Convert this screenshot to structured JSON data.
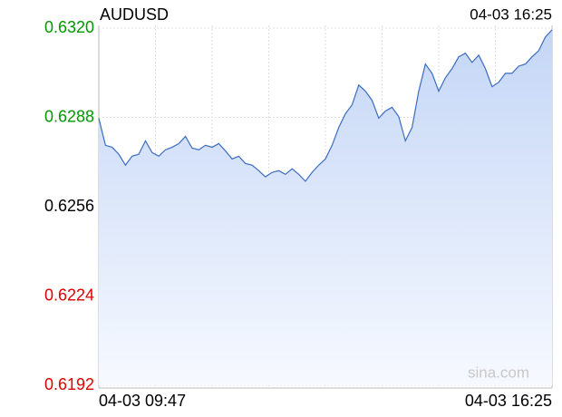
{
  "chart_data": {
    "type": "area",
    "title": "AUDUSD",
    "subtitle": "04-03 16:25",
    "watermark": "sina.com",
    "categories": [
      "04-03 09:47",
      null,
      null,
      null,
      null,
      null,
      null,
      null,
      null,
      null,
      null,
      null,
      null,
      null,
      null,
      null,
      null,
      null,
      null,
      null,
      null,
      null,
      null,
      null,
      null,
      null,
      null,
      null,
      null,
      null,
      null,
      null,
      null,
      null,
      null,
      null,
      null,
      null,
      null,
      null,
      null,
      null,
      null,
      null,
      null,
      null,
      null,
      null,
      null,
      null,
      null,
      null,
      null,
      null,
      null,
      null,
      null,
      null,
      null,
      null,
      null,
      null,
      null,
      null,
      null,
      null,
      null,
      null,
      "04-03 16:25"
    ],
    "values": [
      0.62877,
      0.6278,
      0.62773,
      0.62748,
      0.62709,
      0.62741,
      0.62748,
      0.62796,
      0.62754,
      0.62741,
      0.62764,
      0.62773,
      0.62786,
      0.62812,
      0.6277,
      0.62764,
      0.6278,
      0.62773,
      0.62786,
      0.6276,
      0.62731,
      0.62741,
      0.62715,
      0.62709,
      0.62689,
      0.62667,
      0.62683,
      0.62689,
      0.62676,
      0.62696,
      0.62676,
      0.62651,
      0.62683,
      0.62709,
      0.62731,
      0.6278,
      0.62844,
      0.62893,
      0.62925,
      0.62996,
      0.62974,
      0.62941,
      0.62877,
      0.62903,
      0.62916,
      0.62883,
      0.62796,
      0.62844,
      0.62974,
      0.63071,
      0.63038,
      0.62974,
      0.63022,
      0.63055,
      0.63097,
      0.6311,
      0.63077,
      0.63103,
      0.63055,
      0.6299,
      0.63006,
      0.63038,
      0.63038,
      0.63064,
      0.63071,
      0.63097,
      0.63119,
      0.63168,
      0.63194
    ],
    "color": "#3b6cc0",
    "ylim": [
      0.6192,
      0.632
    ],
    "yticks": [
      {
        "value": 0.6192,
        "label": "0.6192"
      },
      {
        "value": 0.6224,
        "label": "0.6224"
      },
      {
        "value": 0.6256,
        "label": "0.6256"
      },
      {
        "value": 0.6288,
        "label": "0.6288"
      },
      {
        "value": 0.632,
        "label": "0.6320"
      }
    ],
    "ytick_colors": [
      "#e00000",
      "#e00000",
      "#000000",
      "#009900",
      "#009900"
    ],
    "grid": true
  }
}
